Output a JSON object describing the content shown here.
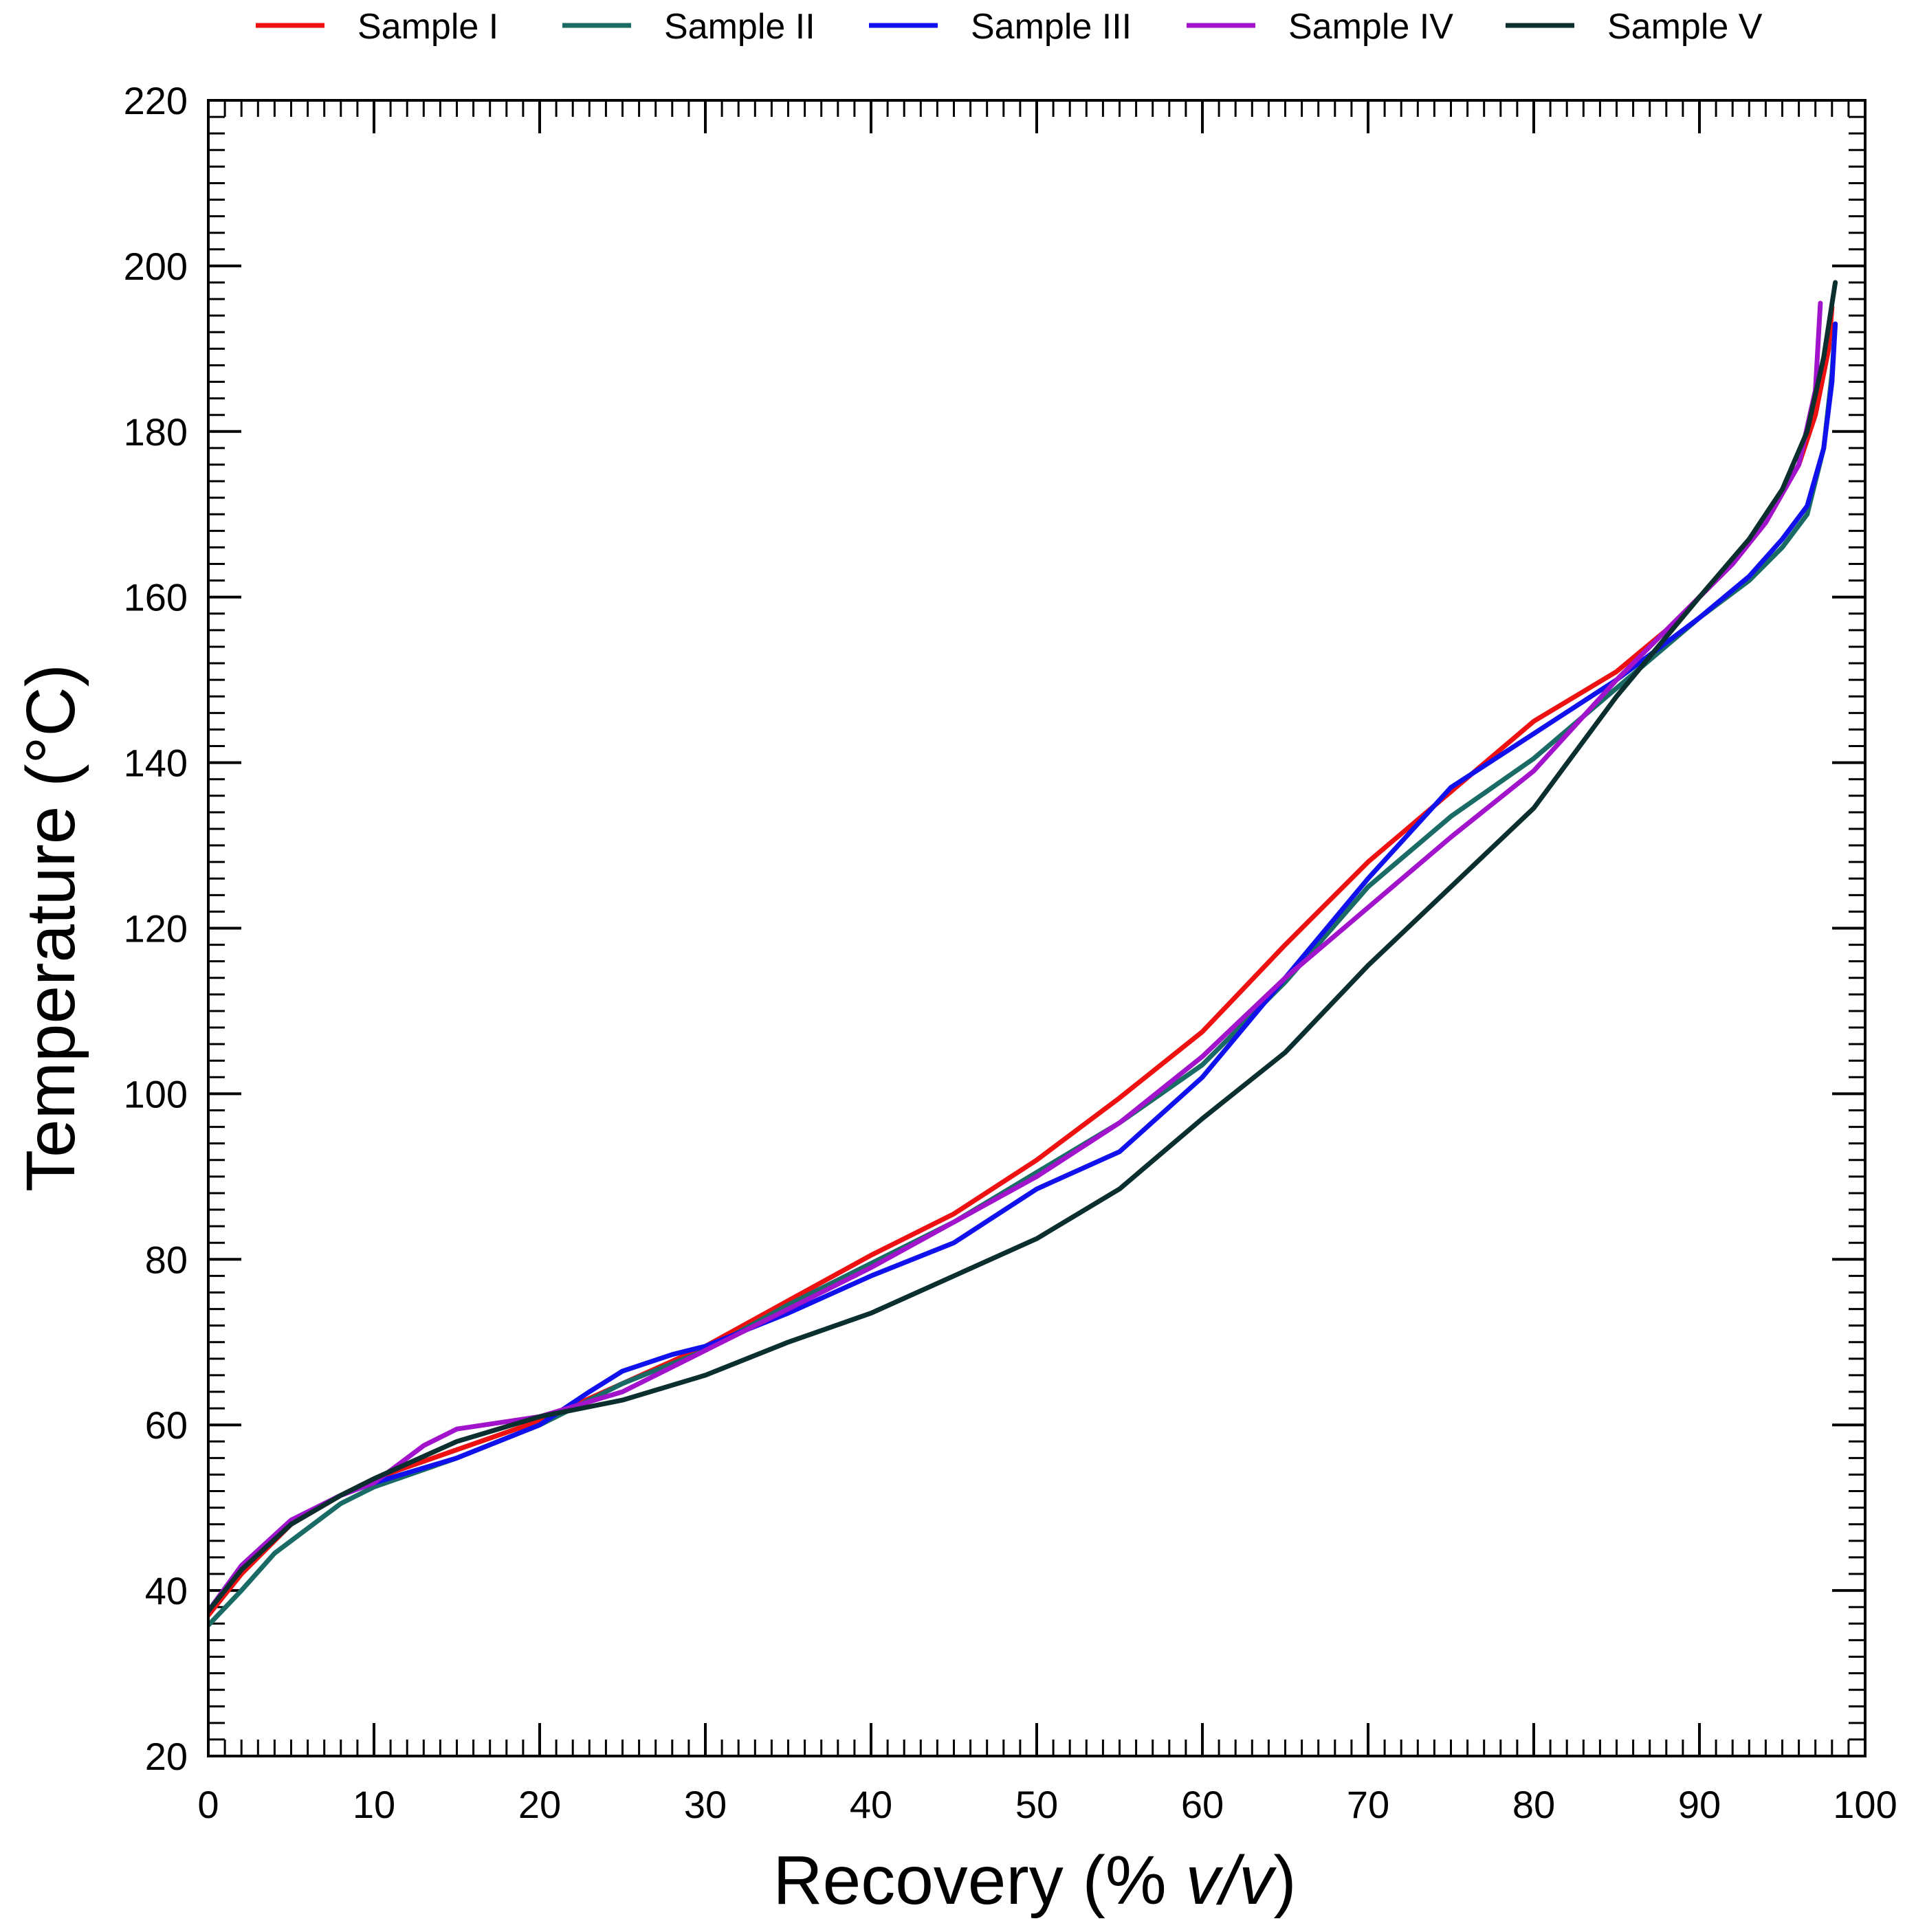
{
  "chart_data": {
    "type": "line",
    "xlabel_main": "Recovery (% ",
    "xlabel_italic": "v/v",
    "xlabel_end": ")",
    "ylabel": "Temperature (°C)",
    "xlim": [
      0,
      100
    ],
    "ylim": [
      20,
      220
    ],
    "x_ticks": [
      0,
      10,
      20,
      30,
      40,
      50,
      60,
      70,
      80,
      90,
      100
    ],
    "y_ticks": [
      20,
      40,
      60,
      80,
      100,
      120,
      140,
      160,
      180,
      200,
      220
    ],
    "legend_position": "top",
    "series": [
      {
        "name": "Sample I",
        "color": "#ee1111",
        "points": [
          [
            0,
            37
          ],
          [
            2,
            42
          ],
          [
            5,
            48
          ],
          [
            8,
            51.5
          ],
          [
            10,
            53.5
          ],
          [
            15,
            57
          ],
          [
            20,
            60.5
          ],
          [
            25,
            65
          ],
          [
            30,
            69.5
          ],
          [
            35,
            75
          ],
          [
            40,
            80.5
          ],
          [
            45,
            85.5
          ],
          [
            50,
            92
          ],
          [
            55,
            99.5
          ],
          [
            60,
            107.5
          ],
          [
            65,
            118
          ],
          [
            70,
            128
          ],
          [
            75,
            136.5
          ],
          [
            80,
            145
          ],
          [
            85,
            151
          ],
          [
            88,
            156
          ],
          [
            90,
            160
          ],
          [
            92,
            164
          ],
          [
            94,
            169
          ],
          [
            96,
            176
          ],
          [
            97,
            182
          ],
          [
            97.8,
            190
          ],
          [
            98,
            195
          ]
        ]
      },
      {
        "name": "Sample II",
        "color": "#1a6b66",
        "points": [
          [
            0,
            35.8
          ],
          [
            2,
            40
          ],
          [
            4,
            44.5
          ],
          [
            8,
            50.5
          ],
          [
            10,
            52.5
          ],
          [
            15,
            56
          ],
          [
            20,
            60
          ],
          [
            25,
            65
          ],
          [
            30,
            69
          ],
          [
            35,
            74.5
          ],
          [
            40,
            79.5
          ],
          [
            45,
            84.5
          ],
          [
            50,
            90.5
          ],
          [
            55,
            96.5
          ],
          [
            60,
            103.5
          ],
          [
            65,
            113.5
          ],
          [
            70,
            125
          ],
          [
            75,
            133.5
          ],
          [
            80,
            140.5
          ],
          [
            85,
            149
          ],
          [
            90,
            157.5
          ],
          [
            93,
            162
          ],
          [
            95,
            166
          ],
          [
            96.5,
            170
          ],
          [
            97.5,
            178
          ],
          [
            98,
            187
          ],
          [
            98.2,
            193
          ]
        ]
      },
      {
        "name": "Sample III",
        "color": "#1111ee",
        "points": [
          [
            0,
            37.5
          ],
          [
            2,
            43
          ],
          [
            5,
            48.5
          ],
          [
            8,
            51.5
          ],
          [
            10,
            53
          ],
          [
            15,
            56
          ],
          [
            20,
            60
          ],
          [
            23,
            64
          ],
          [
            25,
            66.5
          ],
          [
            28,
            68.5
          ],
          [
            30,
            69.5
          ],
          [
            35,
            73.5
          ],
          [
            40,
            78
          ],
          [
            45,
            82
          ],
          [
            50,
            88.5
          ],
          [
            55,
            93
          ],
          [
            60,
            102
          ],
          [
            65,
            114
          ],
          [
            70,
            126
          ],
          [
            75,
            137
          ],
          [
            80,
            143.5
          ],
          [
            85,
            150
          ],
          [
            90,
            157.5
          ],
          [
            93,
            162.5
          ],
          [
            95,
            167
          ],
          [
            96.5,
            171
          ],
          [
            97.5,
            178
          ],
          [
            98,
            186
          ],
          [
            98.2,
            193
          ]
        ]
      },
      {
        "name": "Sample IV",
        "color": "#a213cc",
        "points": [
          [
            0,
            37.5
          ],
          [
            2,
            43
          ],
          [
            5,
            48.5
          ],
          [
            8,
            51.5
          ],
          [
            10,
            53
          ],
          [
            13,
            57.5
          ],
          [
            15,
            59.5
          ],
          [
            20,
            61
          ],
          [
            25,
            64
          ],
          [
            30,
            69
          ],
          [
            35,
            74
          ],
          [
            40,
            79
          ],
          [
            45,
            84.5
          ],
          [
            50,
            90
          ],
          [
            55,
            96.5
          ],
          [
            60,
            104.5
          ],
          [
            65,
            114
          ],
          [
            70,
            122.5
          ],
          [
            75,
            131
          ],
          [
            80,
            139
          ],
          [
            85,
            150
          ],
          [
            88,
            156
          ],
          [
            90,
            160
          ],
          [
            92,
            164
          ],
          [
            94,
            169
          ],
          [
            96,
            176
          ],
          [
            97,
            185
          ],
          [
            97.3,
            195.5
          ]
        ]
      },
      {
        "name": "Sample V",
        "color": "#0b2e2e",
        "points": [
          [
            0,
            37.5
          ],
          [
            2,
            42.5
          ],
          [
            5,
            48
          ],
          [
            8,
            51.5
          ],
          [
            10,
            53.5
          ],
          [
            15,
            58
          ],
          [
            20,
            61
          ],
          [
            25,
            63
          ],
          [
            30,
            66
          ],
          [
            35,
            70
          ],
          [
            40,
            73.5
          ],
          [
            45,
            78
          ],
          [
            50,
            82.5
          ],
          [
            55,
            88.5
          ],
          [
            60,
            97
          ],
          [
            65,
            105
          ],
          [
            70,
            115.5
          ],
          [
            75,
            125
          ],
          [
            80,
            134.5
          ],
          [
            85,
            148
          ],
          [
            90,
            160
          ],
          [
            93,
            167
          ],
          [
            95,
            173
          ],
          [
            96.5,
            180
          ],
          [
            97.5,
            189
          ],
          [
            98.2,
            198
          ]
        ]
      }
    ]
  }
}
